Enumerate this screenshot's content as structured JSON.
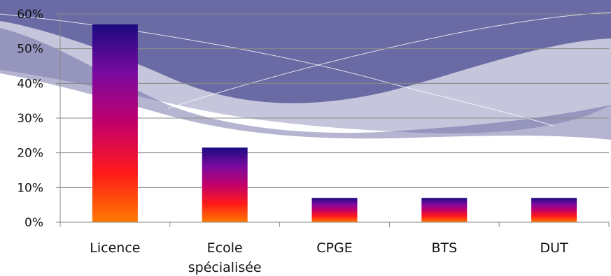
{
  "chart_data": {
    "type": "bar",
    "title": "",
    "xlabel": "",
    "ylabel": "",
    "categories": [
      [
        "Licence"
      ],
      [
        "Ecole",
        "spécialisée"
      ],
      [
        "CPGE"
      ],
      [
        "BTS"
      ],
      [
        "DUT"
      ]
    ],
    "values": [
      57,
      21.5,
      7,
      7,
      7
    ],
    "ylim": [
      0,
      60
    ],
    "yticks": [
      "0%",
      "10%",
      "20%",
      "30%",
      "40%",
      "50%",
      "60%"
    ],
    "grid": true,
    "legend": "none",
    "bar_gradient": [
      "#ff7a00",
      "#ff1a1a",
      "#c2006a",
      "#7a0aa0",
      "#1a0a80"
    ],
    "background_wave_color": "#5a5a9a"
  }
}
